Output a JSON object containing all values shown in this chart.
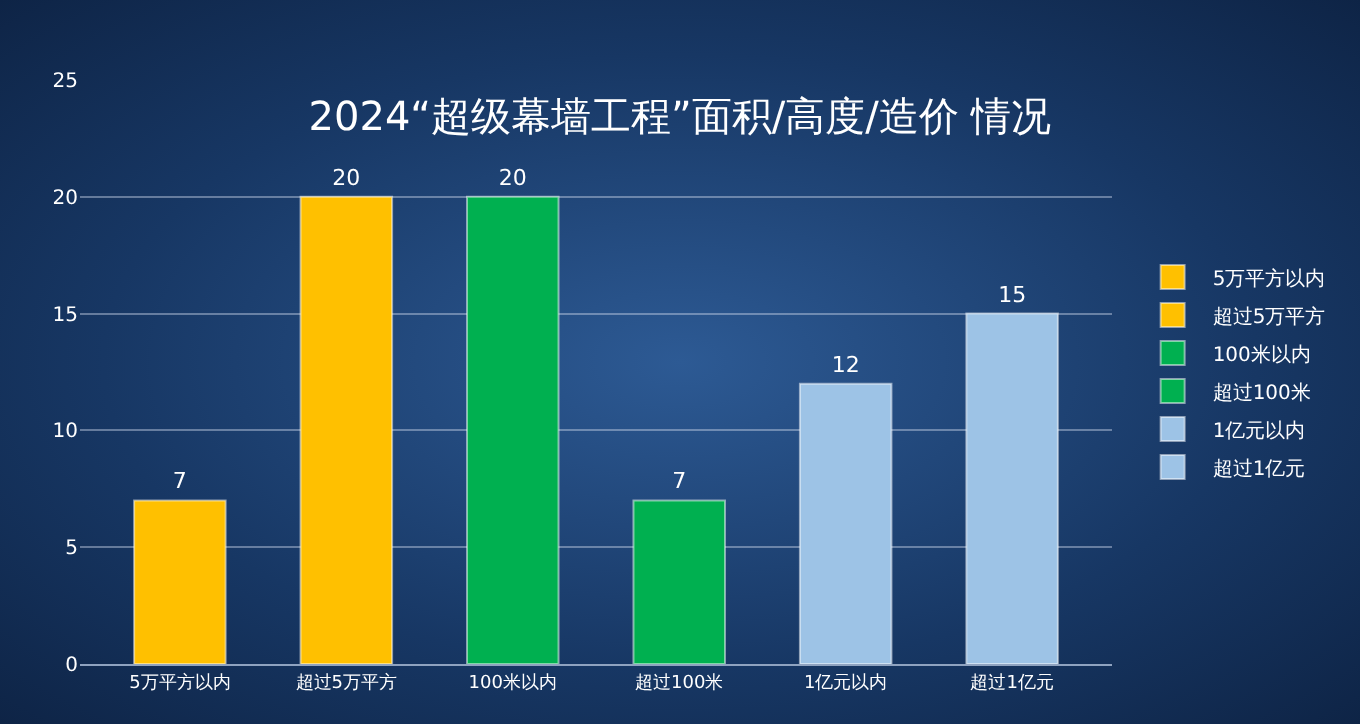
{
  "chart_data": {
    "type": "bar",
    "title": "2024“超级幕墙工程”面积/高度/造价 情况",
    "categories": [
      "5万平方以内",
      "超过5万平方",
      "100米以内",
      "超过100米",
      "1亿元以内",
      "超过1亿元"
    ],
    "series": [
      {
        "name": "5万平方以内",
        "color": "#ffc000",
        "values": [
          7,
          null,
          null,
          null,
          null,
          null
        ]
      },
      {
        "name": "超过5万平方",
        "color": "#ffc000",
        "values": [
          null,
          20,
          null,
          null,
          null,
          null
        ]
      },
      {
        "name": "100米以内",
        "color": "#00b050",
        "values": [
          null,
          null,
          20,
          null,
          null,
          null
        ]
      },
      {
        "name": "超过100米",
        "color": "#00b050",
        "values": [
          null,
          null,
          null,
          7,
          null,
          null
        ]
      },
      {
        "name": "1亿元以内",
        "color": "#9dc3e6",
        "values": [
          null,
          null,
          null,
          null,
          12,
          null
        ]
      },
      {
        "name": "超过1亿元",
        "color": "#9dc3e6",
        "values": [
          null,
          null,
          null,
          null,
          null,
          15
        ]
      }
    ],
    "ylim": [
      0,
      25
    ],
    "yticks": [
      0,
      5,
      10,
      15,
      20,
      25
    ],
    "grid": "y",
    "legend": "right",
    "data_labels": true
  }
}
